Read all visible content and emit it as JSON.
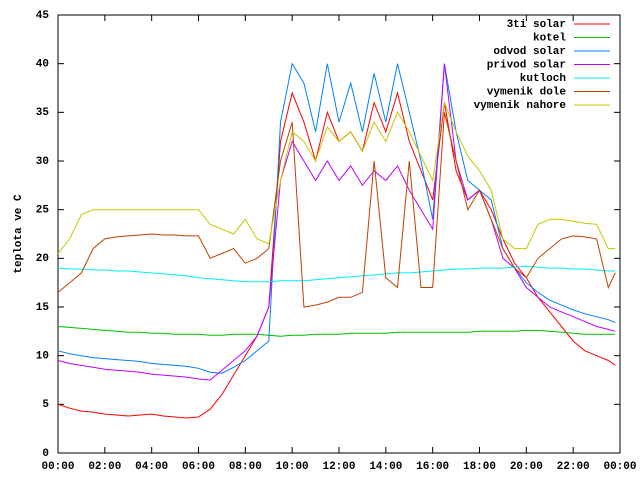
{
  "chart_data": {
    "type": "line",
    "y_label": "teplota ve C",
    "x": [
      0,
      0.5,
      1,
      1.5,
      2,
      2.5,
      3,
      3.5,
      4,
      4.5,
      5,
      5.5,
      6,
      6.5,
      7,
      7.5,
      8,
      8.5,
      9,
      9.5,
      10,
      10.5,
      11,
      11.5,
      12,
      12.5,
      13,
      13.5,
      14,
      14.5,
      15,
      15.5,
      16,
      16.5,
      17,
      17.5,
      18,
      18.5,
      19,
      19.5,
      20,
      20.5,
      21,
      21.5,
      22,
      22.5,
      23,
      23.5,
      23.8
    ],
    "xlim": [
      0,
      24
    ],
    "xticks": [
      {
        "value": 0,
        "label": "00:00"
      },
      {
        "value": 2,
        "label": "02:00"
      },
      {
        "value": 4,
        "label": "04:00"
      },
      {
        "value": 6,
        "label": "06:00"
      },
      {
        "value": 8,
        "label": "08:00"
      },
      {
        "value": 10,
        "label": "10:00"
      },
      {
        "value": 12,
        "label": "12:00"
      },
      {
        "value": 14,
        "label": "14:00"
      },
      {
        "value": 16,
        "label": "16:00"
      },
      {
        "value": 18,
        "label": "18:00"
      },
      {
        "value": 20,
        "label": "20:00"
      },
      {
        "value": 22,
        "label": "22:00"
      },
      {
        "value": 24,
        "label": "00:00"
      }
    ],
    "ylim": [
      0,
      45
    ],
    "yticks": [
      0,
      5,
      10,
      15,
      20,
      25,
      30,
      35,
      40,
      45
    ],
    "grid": false,
    "legend": "top-right",
    "series": [
      {
        "name": "3ti solar",
        "color": "#ff0000",
        "values": [
          5,
          4.6,
          4.3,
          4.2,
          4.0,
          3.9,
          3.8,
          3.9,
          4.0,
          3.8,
          3.7,
          3.6,
          3.7,
          4.5,
          6,
          8,
          10,
          12,
          15,
          32,
          37,
          34,
          30,
          35,
          32,
          33,
          31,
          36,
          33,
          37,
          32,
          29,
          26,
          36,
          29,
          26,
          27,
          25,
          22,
          19.5,
          18,
          16,
          14.5,
          13,
          11.5,
          10.5,
          10,
          9.5,
          9
        ]
      },
      {
        "name": "kotel",
        "color": "#00c000",
        "values": [
          13,
          12.9,
          12.8,
          12.7,
          12.6,
          12.5,
          12.4,
          12.4,
          12.3,
          12.3,
          12.2,
          12.2,
          12.2,
          12.1,
          12.1,
          12.2,
          12.2,
          12.2,
          12.1,
          12.0,
          12.1,
          12.1,
          12.2,
          12.2,
          12.2,
          12.3,
          12.3,
          12.3,
          12.3,
          12.4,
          12.4,
          12.4,
          12.4,
          12.4,
          12.4,
          12.4,
          12.5,
          12.5,
          12.5,
          12.5,
          12.6,
          12.6,
          12.5,
          12.4,
          12.3,
          12.2,
          12.2,
          12.2,
          12.2
        ]
      },
      {
        "name": "odvod solar",
        "color": "#0080ff",
        "values": [
          10.5,
          10.2,
          10,
          9.8,
          9.7,
          9.6,
          9.5,
          9.4,
          9.2,
          9.1,
          9,
          8.9,
          8.7,
          8.3,
          8.2,
          8.8,
          9.5,
          10.5,
          11.5,
          34,
          40,
          38,
          33,
          40,
          34,
          38,
          33,
          39,
          34,
          40,
          35,
          30,
          24,
          40,
          33,
          28,
          27,
          26,
          21,
          19,
          17.5,
          16.5,
          15.7,
          15.2,
          14.7,
          14.3,
          14,
          13.7,
          13.4
        ]
      },
      {
        "name": "privod solar",
        "color": "#c000ff",
        "values": [
          9.5,
          9.2,
          9,
          8.8,
          8.6,
          8.5,
          8.4,
          8.3,
          8.1,
          8.0,
          7.9,
          7.8,
          7.6,
          7.5,
          8.5,
          9.5,
          10.5,
          12,
          15,
          28,
          32,
          30,
          28,
          30,
          28,
          29.5,
          27.5,
          29,
          28,
          29.5,
          27,
          25,
          23,
          40,
          30,
          26,
          27,
          24,
          20,
          19,
          17,
          16,
          15,
          14.5,
          14,
          13.5,
          13,
          12.7,
          12.5
        ]
      },
      {
        "name": "kutloch",
        "color": "#00eeee",
        "values": [
          19,
          18.9,
          18.9,
          18.8,
          18.8,
          18.7,
          18.7,
          18.6,
          18.5,
          18.4,
          18.3,
          18.2,
          18.0,
          17.9,
          17.8,
          17.7,
          17.6,
          17.6,
          17.6,
          17.7,
          17.7,
          17.7,
          17.8,
          17.9,
          18,
          18.1,
          18.2,
          18.3,
          18.4,
          18.5,
          18.5,
          18.6,
          18.7,
          18.8,
          18.9,
          18.9,
          19,
          19,
          19,
          19.1,
          19.2,
          19.1,
          19,
          19,
          18.9,
          18.9,
          18.8,
          18.7,
          18.7
        ]
      },
      {
        "name": "vymenik dole",
        "color": "#c04000",
        "values": [
          16.5,
          17.5,
          18.5,
          21,
          22,
          22.2,
          22.3,
          22.4,
          22.5,
          22.4,
          22.4,
          22.3,
          22.3,
          20,
          20.5,
          21,
          19.5,
          20,
          21,
          30,
          34,
          15,
          15.2,
          15.5,
          16,
          16,
          16.5,
          30,
          18,
          17,
          30,
          17,
          17,
          35,
          30,
          25,
          27,
          24,
          21,
          19,
          18,
          20,
          21,
          22,
          22.3,
          22.2,
          22,
          17,
          18.5
        ]
      },
      {
        "name": "vymenik nahore",
        "color": "#c8c800",
        "values": [
          20.5,
          22,
          24.5,
          25,
          25,
          25,
          25,
          25,
          25,
          25,
          25,
          25,
          25,
          23.5,
          23,
          22.5,
          24,
          22,
          21.5,
          28,
          33,
          32,
          30,
          33.5,
          32,
          33,
          31,
          34,
          32,
          35,
          33,
          30.5,
          28,
          36,
          33,
          30.5,
          29,
          27,
          22,
          21,
          21,
          23.5,
          24,
          24,
          23.8,
          23.6,
          23.5,
          21,
          21
        ]
      }
    ]
  }
}
